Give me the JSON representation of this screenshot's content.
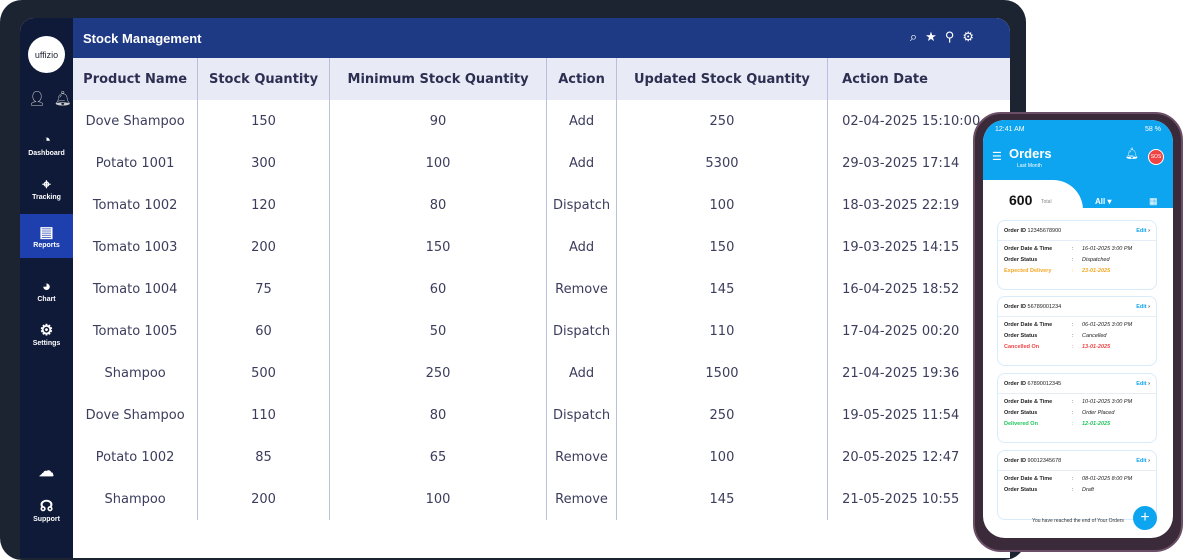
{
  "app": {
    "logo": "uffizio",
    "title": "Stock Management"
  },
  "sidebar": {
    "items": [
      {
        "label": "Dashboard",
        "icon": "◔"
      },
      {
        "label": "Tracking",
        "icon": "⌖"
      },
      {
        "label": "Reports",
        "icon": "▤"
      },
      {
        "label": "Chart",
        "icon": "◕"
      },
      {
        "label": "Settings",
        "icon": "⚙"
      },
      {
        "label": "Support",
        "icon": "☊"
      }
    ],
    "active": "Reports"
  },
  "table": {
    "headers": [
      "Product Name",
      "Stock Quantity",
      "Minimum Stock Quantity",
      "Action",
      "Updated Stock Quantity",
      "Action Date"
    ],
    "rows": [
      [
        "Dove Shampoo",
        "150",
        "90",
        "Add",
        "250",
        "02-04-2025 15:10:00"
      ],
      [
        "Potato 1001",
        "300",
        "100",
        "Add",
        "5300",
        "29-03-2025 17:14"
      ],
      [
        "Tomato 1002",
        "120",
        "80",
        "Dispatch",
        "100",
        "18-03-2025 22:19"
      ],
      [
        "Tomato 1003",
        "200",
        "150",
        "Add",
        "150",
        "19-03-2025 14:15"
      ],
      [
        "Tomato 1004",
        "75",
        "60",
        "Remove",
        "145",
        "16-04-2025 18:52"
      ],
      [
        "Tomato 1005",
        "60",
        "50",
        "Dispatch",
        "110",
        "17-04-2025 00:20"
      ],
      [
        "Shampoo",
        "500",
        "250",
        "Add",
        "1500",
        "21-04-2025 19:36"
      ],
      [
        "Dove Shampoo",
        "110",
        "80",
        "Dispatch",
        "250",
        "19-05-2025 11:54"
      ],
      [
        "Potato 1002",
        "85",
        "65",
        "Remove",
        "100",
        "20-05-2025 12:47"
      ],
      [
        "Shampoo",
        "200",
        "100",
        "Remove",
        "145",
        "21-05-2025 10:55"
      ]
    ]
  },
  "phone": {
    "time": "12:41 AM",
    "battery": "58 %",
    "title": "Orders",
    "subtitle": "Last Month",
    "notif_count": "1",
    "sos": "SOS",
    "total": "600",
    "total_label": "Total",
    "filter": "All ▾",
    "labels": {
      "order_id": "Order ID",
      "date": "Order Date & Time",
      "status": "Order Status",
      "edit": "Edit"
    },
    "orders": [
      {
        "id": "12345678900",
        "date": "16-01-2025   3:00 PM",
        "status": "Dispatched",
        "extra_label": "Expected Delivery",
        "extra_value": "23-01-2025",
        "color": "#f5a623"
      },
      {
        "id": "56789001234",
        "date": "06-01-2025   3:00 PM",
        "status": "Cancelled",
        "extra_label": "Cancelled On",
        "extra_value": "13-01-2025",
        "color": "#ef4444"
      },
      {
        "id": "67890012345",
        "date": "10-01-2025   3:00 PM",
        "status": "Order Placed",
        "extra_label": "Delivered On",
        "extra_value": "12-01-2025",
        "color": "#22c55e"
      },
      {
        "id": "90012345678",
        "date": "08-01-2025   8:00 PM",
        "status": "Draft"
      }
    ],
    "end_text": "You have reached the end of Your Orders"
  },
  "colors": {
    "sidebar": "#0f1a38",
    "header": "#1f3a85",
    "active": "#1e40af",
    "phone_accent": "#0ea5f0"
  }
}
